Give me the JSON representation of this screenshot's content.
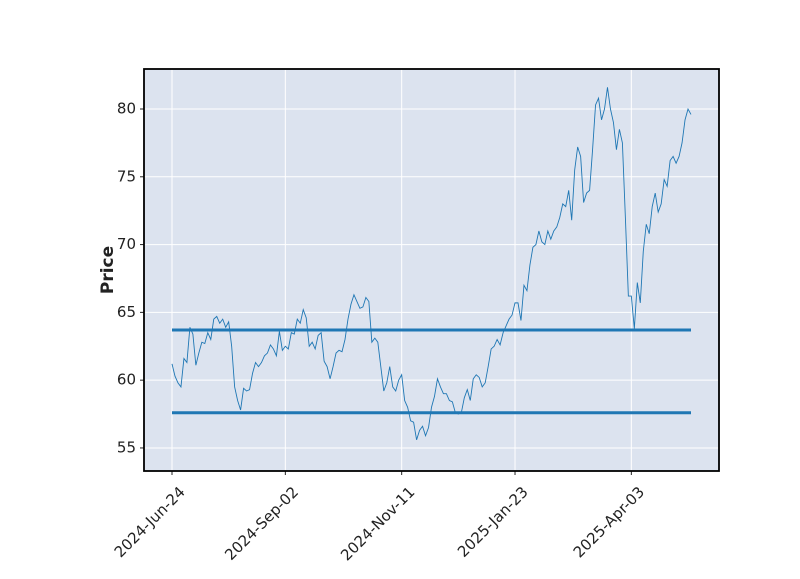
{
  "chart_data": {
    "type": "line",
    "ylabel": "Price",
    "categories": [
      "2024-Jun-24",
      null,
      null,
      null,
      null,
      null,
      null,
      null,
      null,
      null,
      null,
      null,
      null,
      null,
      null,
      null,
      null,
      null,
      null,
      null,
      null,
      null,
      null,
      null,
      null,
      null,
      null,
      null,
      null,
      null,
      null,
      null,
      null,
      null,
      null,
      null,
      null,
      null,
      "2024-Sep-02",
      null,
      null,
      null,
      null,
      null,
      null,
      null,
      null,
      null,
      null,
      null,
      null,
      null,
      null,
      null,
      null,
      null,
      null,
      null,
      null,
      null,
      null,
      null,
      null,
      null,
      null,
      null,
      null,
      null,
      null,
      null,
      null,
      null,
      null,
      null,
      null,
      null,
      null,
      "2024-Nov-11",
      null,
      null,
      null,
      null,
      null,
      null,
      null,
      null,
      null,
      null,
      null,
      null,
      null,
      null,
      null,
      null,
      null,
      null,
      null,
      null,
      null,
      null,
      null,
      null,
      null,
      null,
      null,
      null,
      null,
      null,
      null,
      null,
      null,
      null,
      null,
      null,
      null,
      "2025-Jan-23",
      null,
      null,
      null,
      null,
      null,
      null,
      null,
      null,
      null,
      null,
      null,
      null,
      null,
      null,
      null,
      null,
      null,
      null,
      null,
      null,
      null,
      null,
      null,
      null,
      null,
      null,
      null,
      null,
      null,
      null,
      null,
      null,
      null,
      null,
      null,
      null,
      null,
      null,
      "2025-Apr-03",
      null,
      null,
      null,
      null,
      null,
      null,
      null,
      null,
      null,
      null,
      null,
      null,
      null,
      null,
      null,
      null,
      null,
      null,
      null,
      null
    ],
    "values": [
      61.2,
      60.3,
      59.8,
      59.5,
      61.6,
      61.3,
      63.9,
      63.4,
      61.1,
      62.0,
      62.8,
      62.7,
      63.5,
      63.0,
      64.5,
      64.7,
      64.2,
      64.5,
      63.9,
      64.3,
      62.5,
      59.5,
      58.5,
      57.8,
      59.4,
      59.2,
      59.3,
      60.5,
      61.3,
      61.0,
      61.3,
      61.8,
      62.0,
      62.6,
      62.3,
      61.8,
      63.6,
      62.2,
      62.5,
      62.3,
      63.5,
      63.4,
      64.5,
      64.2,
      65.2,
      64.6,
      62.5,
      62.8,
      62.3,
      63.3,
      63.5,
      61.4,
      61.0,
      60.1,
      61.0,
      62.0,
      62.2,
      62.1,
      63.0,
      64.5,
      65.6,
      66.3,
      65.8,
      65.3,
      65.4,
      66.1,
      65.8,
      62.8,
      63.1,
      62.8,
      61.0,
      59.2,
      59.8,
      61.0,
      59.5,
      59.2,
      60.0,
      60.4,
      58.5,
      58.0,
      57.0,
      56.9,
      55.6,
      56.3,
      56.6,
      55.9,
      56.5,
      58.0,
      58.8,
      60.1,
      59.5,
      59.0,
      59.0,
      58.5,
      58.4,
      57.6,
      57.5,
      57.6,
      58.7,
      59.3,
      58.5,
      60.1,
      60.4,
      60.2,
      59.5,
      59.8,
      61.0,
      62.3,
      62.5,
      63.0,
      62.6,
      63.5,
      64.0,
      64.5,
      64.8,
      65.7,
      65.7,
      64.4,
      67.0,
      66.6,
      68.5,
      69.8,
      70.0,
      71.0,
      70.2,
      70.0,
      71.0,
      70.4,
      71.0,
      71.3,
      72.0,
      73.0,
      72.8,
      74.0,
      71.8,
      75.5,
      77.2,
      76.5,
      73.1,
      73.8,
      74.0,
      77.0,
      80.3,
      80.8,
      79.2,
      80.0,
      81.6,
      80.0,
      79.0,
      77.0,
      78.5,
      77.5,
      72.0,
      66.2,
      66.2,
      63.8,
      67.2,
      65.7,
      69.5,
      71.5,
      70.8,
      72.8,
      73.8,
      72.4,
      73.0,
      74.8,
      74.3,
      76.2,
      76.5,
      76.0,
      76.5,
      77.5,
      79.2,
      80.0,
      79.6
    ],
    "color": "#1f77b4",
    "hlines": {
      "values": [
        63.7,
        57.6
      ],
      "color": "#1f77b4"
    },
    "ylim": [
      53.3,
      82.95
    ],
    "yticks": [
      55,
      60,
      65,
      70,
      75,
      80
    ],
    "grid": true
  }
}
